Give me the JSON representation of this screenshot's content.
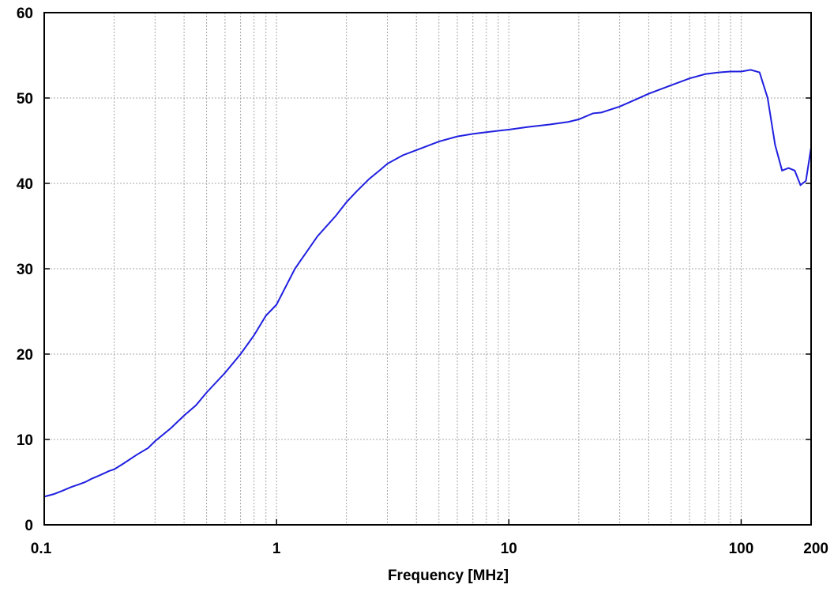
{
  "chart_data": {
    "type": "line",
    "title": "",
    "xlabel": "Frequency [MHz]",
    "ylabel": "",
    "xscale": "log",
    "xlim": [
      0.1,
      200
    ],
    "ylim": [
      0,
      60
    ],
    "grid": true,
    "legend": "none",
    "line_color": "#1f1fe0",
    "grid_color": "#a8a8a8",
    "x_ticks": [
      {
        "value": 0.1,
        "label": "0.1"
      },
      {
        "value": 1,
        "label": "1"
      },
      {
        "value": 10,
        "label": "10"
      },
      {
        "value": 100,
        "label": "100"
      },
      {
        "value": 200,
        "label": "200"
      }
    ],
    "y_ticks": [
      {
        "value": 0,
        "label": "0"
      },
      {
        "value": 10,
        "label": "10"
      },
      {
        "value": 20,
        "label": "20"
      },
      {
        "value": 30,
        "label": "30"
      },
      {
        "value": 40,
        "label": "40"
      },
      {
        "value": 50,
        "label": "50"
      },
      {
        "value": 60,
        "label": "60"
      }
    ],
    "series": [
      {
        "x": [
          0.1,
          0.11,
          0.12,
          0.13,
          0.14,
          0.15,
          0.16,
          0.17,
          0.18,
          0.19,
          0.2,
          0.22,
          0.25,
          0.28,
          0.3,
          0.35,
          0.4,
          0.45,
          0.5,
          0.6,
          0.7,
          0.8,
          0.9,
          1.0,
          1.2,
          1.5,
          1.8,
          2.0,
          2.2,
          2.5,
          2.8,
          3.0,
          3.5,
          4.0,
          5.0,
          6.0,
          7.0,
          8.0,
          10,
          12,
          15,
          18,
          20,
          23,
          25,
          30,
          35,
          40,
          50,
          60,
          70,
          80,
          90,
          100,
          110,
          120,
          130,
          140,
          150,
          160,
          170,
          180,
          190,
          200
        ],
        "y": [
          3.3,
          3.6,
          4.0,
          4.4,
          4.7,
          5.0,
          5.4,
          5.7,
          6.0,
          6.3,
          6.5,
          7.2,
          8.2,
          9.0,
          9.8,
          11.3,
          12.8,
          14.0,
          15.5,
          17.8,
          20.0,
          22.2,
          24.5,
          25.8,
          30.0,
          33.8,
          36.2,
          37.8,
          39.0,
          40.5,
          41.6,
          42.3,
          43.3,
          43.9,
          44.9,
          45.5,
          45.8,
          46.0,
          46.3,
          46.6,
          46.9,
          47.2,
          47.5,
          48.2,
          48.3,
          49.0,
          49.8,
          50.5,
          51.5,
          52.3,
          52.8,
          53.0,
          53.1,
          53.1,
          53.3,
          53.0,
          50.0,
          44.5,
          41.5,
          41.8,
          41.5,
          39.8,
          40.3,
          44.2
        ]
      }
    ]
  }
}
